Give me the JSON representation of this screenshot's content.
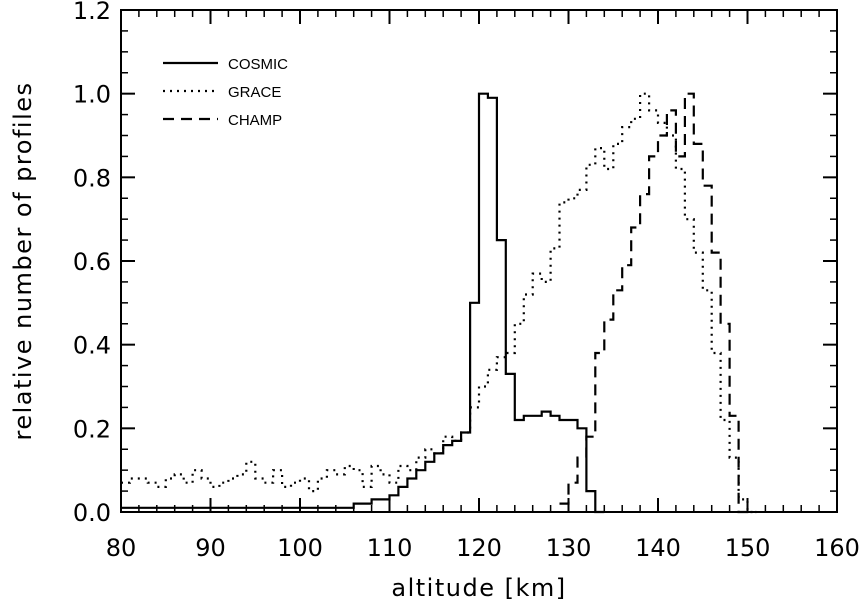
{
  "chart_data": {
    "type": "line",
    "title": "",
    "xlabel": "altitude [km]",
    "ylabel": "relative number of profiles",
    "xlim": [
      80,
      160
    ],
    "ylim": [
      0,
      1.2
    ],
    "x_ticks": [
      "80",
      "90",
      "100",
      "110",
      "120",
      "130",
      "140",
      "150",
      "160"
    ],
    "y_ticks": [
      "0.0",
      "0.2",
      "0.4",
      "0.6",
      "0.8",
      "1.0",
      "1.2"
    ],
    "grid": false,
    "legend_position": "top-left",
    "bin_width_km": 1,
    "series": [
      {
        "name": "COSMIC",
        "style": "solid",
        "x": [
          80,
          81,
          82,
          83,
          84,
          85,
          86,
          87,
          88,
          89,
          90,
          91,
          92,
          93,
          94,
          95,
          96,
          97,
          98,
          99,
          100,
          101,
          102,
          103,
          104,
          105,
          106,
          107,
          108,
          109,
          110,
          111,
          112,
          113,
          114,
          115,
          116,
          117,
          118,
          119,
          120,
          121,
          122,
          123,
          124,
          125,
          126,
          127,
          128,
          129,
          130,
          131,
          132,
          133
        ],
        "values": [
          0.01,
          0.01,
          0.01,
          0.01,
          0.01,
          0.01,
          0.01,
          0.01,
          0.01,
          0.01,
          0.01,
          0.01,
          0.01,
          0.01,
          0.01,
          0.01,
          0.01,
          0.01,
          0.01,
          0.01,
          0.01,
          0.01,
          0.01,
          0.01,
          0.01,
          0.01,
          0.02,
          0.02,
          0.03,
          0.03,
          0.04,
          0.06,
          0.08,
          0.1,
          0.12,
          0.14,
          0.16,
          0.17,
          0.19,
          0.5,
          1.0,
          0.99,
          0.65,
          0.33,
          0.22,
          0.23,
          0.23,
          0.24,
          0.23,
          0.22,
          0.22,
          0.2,
          0.05,
          0.0
        ]
      },
      {
        "name": "GRACE",
        "style": "dotted",
        "x": [
          80,
          81,
          82,
          83,
          84,
          85,
          86,
          87,
          88,
          89,
          90,
          91,
          92,
          93,
          94,
          95,
          96,
          97,
          98,
          99,
          100,
          101,
          102,
          103,
          104,
          105,
          106,
          107,
          108,
          109,
          110,
          111,
          112,
          113,
          114,
          115,
          116,
          117,
          118,
          119,
          120,
          121,
          122,
          123,
          124,
          125,
          126,
          127,
          128,
          129,
          130,
          131,
          132,
          133,
          134,
          135,
          136,
          137,
          138,
          139,
          140,
          141,
          142,
          143,
          144,
          145,
          146,
          147,
          148,
          149,
          150
        ],
        "values": [
          0.07,
          0.08,
          0.08,
          0.07,
          0.06,
          0.08,
          0.09,
          0.07,
          0.1,
          0.08,
          0.06,
          0.07,
          0.08,
          0.09,
          0.12,
          0.08,
          0.07,
          0.1,
          0.06,
          0.07,
          0.08,
          0.05,
          0.08,
          0.1,
          0.09,
          0.11,
          0.1,
          0.06,
          0.11,
          0.09,
          0.07,
          0.11,
          0.1,
          0.13,
          0.15,
          0.14,
          0.18,
          0.17,
          0.19,
          0.25,
          0.3,
          0.34,
          0.37,
          0.38,
          0.45,
          0.52,
          0.57,
          0.55,
          0.63,
          0.74,
          0.75,
          0.77,
          0.83,
          0.87,
          0.82,
          0.88,
          0.92,
          0.94,
          1.0,
          0.96,
          0.93,
          0.9,
          0.82,
          0.7,
          0.62,
          0.53,
          0.38,
          0.22,
          0.13,
          0.03,
          0.0
        ]
      },
      {
        "name": "CHAMP",
        "style": "dashed",
        "x": [
          129,
          130,
          131,
          132,
          133,
          134,
          135,
          136,
          137,
          138,
          139,
          140,
          141,
          142,
          143,
          144,
          145,
          146,
          147,
          148,
          149,
          150
        ],
        "values": [
          0.02,
          0.07,
          0.13,
          0.18,
          0.38,
          0.46,
          0.53,
          0.59,
          0.68,
          0.76,
          0.85,
          0.9,
          0.96,
          0.85,
          1.0,
          0.88,
          0.78,
          0.62,
          0.45,
          0.23,
          0.0,
          0.0
        ]
      }
    ]
  }
}
